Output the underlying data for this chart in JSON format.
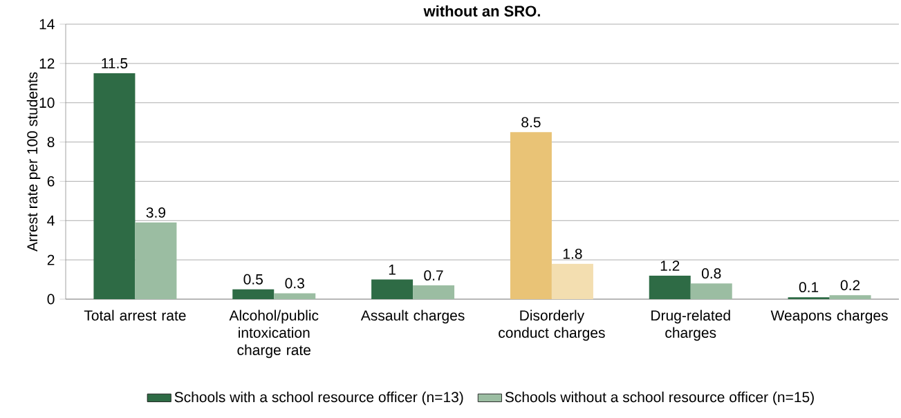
{
  "chart_data": {
    "type": "bar",
    "title": "without an SRO.",
    "ylabel": "Arrest rate per 100 students",
    "categories": [
      "Total arrest rate",
      "Alcohol/public intoxication charge rate",
      "Assault charges",
      "Disorderly conduct charges",
      "Drug-related charges",
      "Weapons charges"
    ],
    "series": [
      {
        "name": "Schools with a school resource officer (n=13)",
        "color": "#2e6b45",
        "colors": [
          "#2e6b45",
          "#2e6b45",
          "#2e6b45",
          "#e9c376",
          "#2e6b45",
          "#2e6b45"
        ],
        "values": [
          11.5,
          0.5,
          1,
          8.5,
          1.2,
          0.1
        ]
      },
      {
        "name": "Schools without a school resource officer (n=15)",
        "color": "#9bbda2",
        "colors": [
          "#9bbda2",
          "#9bbda2",
          "#9bbda2",
          "#f3deb0",
          "#9bbda2",
          "#9bbda2"
        ],
        "values": [
          3.9,
          0.3,
          0.7,
          1.8,
          0.8,
          0.2
        ]
      }
    ],
    "ylim": [
      0,
      14
    ],
    "yticks": [
      0,
      2,
      4,
      6,
      8,
      10,
      12,
      14
    ],
    "grid": "y",
    "legend": "bottom",
    "data_labels": true
  }
}
